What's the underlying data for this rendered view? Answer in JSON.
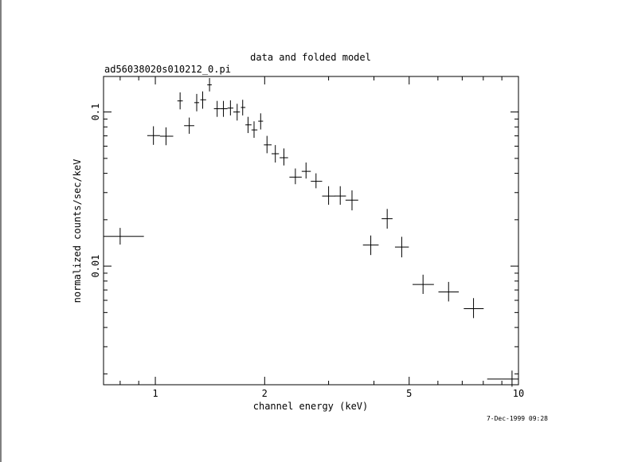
{
  "chart_data": {
    "type": "scatter",
    "title": "data and folded model",
    "subtitle": "ad56038020s010212_0.pi",
    "xlabel": "channel energy (keV)",
    "ylabel": "normalized counts/sec/keV",
    "x_scale": "log",
    "y_scale": "log",
    "xlim": [
      0.72,
      10
    ],
    "ylim": [
      0.0017,
      0.17
    ],
    "x_ticks": [
      {
        "value": 1,
        "label": "1"
      },
      {
        "value": 2,
        "label": "2"
      },
      {
        "value": 5,
        "label": "5"
      },
      {
        "value": 10,
        "label": "10"
      }
    ],
    "y_ticks": [
      {
        "value": 0.01,
        "label": "0.01"
      },
      {
        "value": 0.1,
        "label": "0.1"
      }
    ],
    "grid": false,
    "timestamp": "7-Dec-1999 09:28",
    "points": [
      {
        "x": 0.8,
        "y": 0.0156,
        "xlo": 0.72,
        "xhi": 0.93,
        "ylo": 0.0138,
        "yhi": 0.0177
      },
      {
        "x": 0.988,
        "y": 0.0703,
        "xlo": 0.95,
        "xhi": 1.03,
        "ylo": 0.0612,
        "yhi": 0.0808
      },
      {
        "x": 1.07,
        "y": 0.0696,
        "xlo": 1.03,
        "xhi": 1.12,
        "ylo": 0.0609,
        "yhi": 0.0795
      },
      {
        "x": 1.17,
        "y": 0.118,
        "xlo": 1.15,
        "xhi": 1.19,
        "ylo": 0.104,
        "yhi": 0.134
      },
      {
        "x": 1.24,
        "y": 0.0815,
        "xlo": 1.2,
        "xhi": 1.28,
        "ylo": 0.0722,
        "yhi": 0.092
      },
      {
        "x": 1.3,
        "y": 0.115,
        "xlo": 1.28,
        "xhi": 1.32,
        "ylo": 0.101,
        "yhi": 0.131
      },
      {
        "x": 1.35,
        "y": 0.12,
        "xlo": 1.33,
        "xhi": 1.38,
        "ylo": 0.105,
        "yhi": 0.136
      },
      {
        "x": 1.41,
        "y": 0.15,
        "xlo": 1.39,
        "xhi": 1.43,
        "ylo": 0.136,
        "yhi": 0.166
      },
      {
        "x": 1.48,
        "y": 0.105,
        "xlo": 1.45,
        "xhi": 1.51,
        "ylo": 0.093,
        "yhi": 0.118
      },
      {
        "x": 1.54,
        "y": 0.105,
        "xlo": 1.51,
        "xhi": 1.58,
        "ylo": 0.093,
        "yhi": 0.118
      },
      {
        "x": 1.61,
        "y": 0.106,
        "xlo": 1.58,
        "xhi": 1.64,
        "ylo": 0.095,
        "yhi": 0.119
      },
      {
        "x": 1.68,
        "y": 0.1,
        "xlo": 1.64,
        "xhi": 1.71,
        "ylo": 0.088,
        "yhi": 0.113
      },
      {
        "x": 1.74,
        "y": 0.107,
        "xlo": 1.72,
        "xhi": 1.77,
        "ylo": 0.095,
        "yhi": 0.12
      },
      {
        "x": 1.8,
        "y": 0.0825,
        "xlo": 1.77,
        "xhi": 1.84,
        "ylo": 0.073,
        "yhi": 0.093
      },
      {
        "x": 1.87,
        "y": 0.0765,
        "xlo": 1.84,
        "xhi": 1.91,
        "ylo": 0.068,
        "yhi": 0.087
      },
      {
        "x": 1.95,
        "y": 0.0872,
        "xlo": 1.92,
        "xhi": 1.98,
        "ylo": 0.077,
        "yhi": 0.098
      },
      {
        "x": 2.03,
        "y": 0.0612,
        "xlo": 1.99,
        "xhi": 2.09,
        "ylo": 0.054,
        "yhi": 0.07
      },
      {
        "x": 2.14,
        "y": 0.0536,
        "xlo": 2.09,
        "xhi": 2.19,
        "ylo": 0.047,
        "yhi": 0.061
      },
      {
        "x": 2.26,
        "y": 0.0505,
        "xlo": 2.2,
        "xhi": 2.32,
        "ylo": 0.045,
        "yhi": 0.058
      },
      {
        "x": 2.43,
        "y": 0.0378,
        "xlo": 2.34,
        "xhi": 2.53,
        "ylo": 0.034,
        "yhi": 0.043
      },
      {
        "x": 2.6,
        "y": 0.0412,
        "xlo": 2.53,
        "xhi": 2.68,
        "ylo": 0.037,
        "yhi": 0.047
      },
      {
        "x": 2.77,
        "y": 0.0355,
        "xlo": 2.68,
        "xhi": 2.88,
        "ylo": 0.032,
        "yhi": 0.04
      },
      {
        "x": 3.0,
        "y": 0.0285,
        "xlo": 2.88,
        "xhi": 3.13,
        "ylo": 0.025,
        "yhi": 0.033
      },
      {
        "x": 3.23,
        "y": 0.0285,
        "xlo": 3.12,
        "xhi": 3.35,
        "ylo": 0.025,
        "yhi": 0.033
      },
      {
        "x": 3.48,
        "y": 0.0268,
        "xlo": 3.34,
        "xhi": 3.62,
        "ylo": 0.023,
        "yhi": 0.031
      },
      {
        "x": 3.92,
        "y": 0.0137,
        "xlo": 3.73,
        "xhi": 4.12,
        "ylo": 0.0118,
        "yhi": 0.0158
      },
      {
        "x": 4.35,
        "y": 0.0203,
        "xlo": 4.2,
        "xhi": 4.5,
        "ylo": 0.0175,
        "yhi": 0.0235
      },
      {
        "x": 4.77,
        "y": 0.0133,
        "xlo": 4.57,
        "xhi": 4.99,
        "ylo": 0.0114,
        "yhi": 0.0155
      },
      {
        "x": 5.46,
        "y": 0.0076,
        "xlo": 5.11,
        "xhi": 5.85,
        "ylo": 0.0066,
        "yhi": 0.0088
      },
      {
        "x": 6.42,
        "y": 0.0068,
        "xlo": 6.02,
        "xhi": 6.85,
        "ylo": 0.0059,
        "yhi": 0.0079
      },
      {
        "x": 7.52,
        "y": 0.0053,
        "xlo": 7.07,
        "xhi": 8.02,
        "ylo": 0.0046,
        "yhi": 0.0062
      },
      {
        "x": 9.6,
        "y": 0.00185,
        "xlo": 8.2,
        "xhi": 10.0,
        "ylo": 0.00165,
        "yhi": 0.0021
      }
    ]
  }
}
